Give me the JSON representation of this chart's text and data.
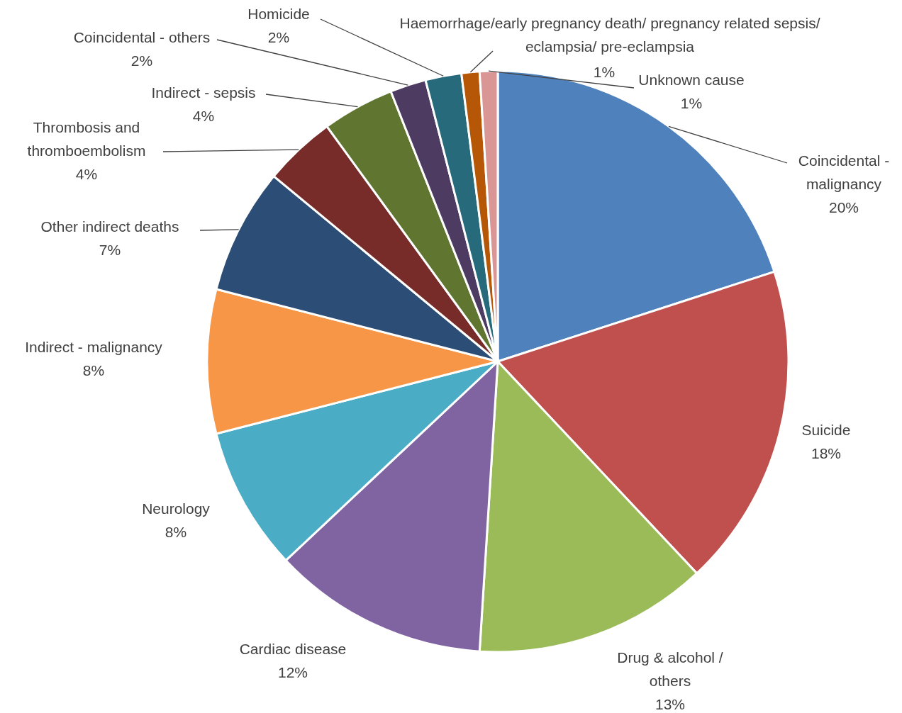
{
  "chart_data": {
    "type": "pie",
    "categories": [
      "Coincidental - malignancy",
      "Suicide",
      "Drug & alcohol / others",
      "Cardiac disease",
      "Neurology",
      "Indirect - malignancy",
      "Other indirect deaths",
      "Thrombosis and thromboembolism",
      "Indirect - sepsis",
      "Coincidental - others",
      "Homicide",
      "Haemorrhage/early pregnancy death/ pregnancy related sepsis/ eclampsia/ pre-eclampsia",
      "Unknown cause"
    ],
    "values": [
      20,
      18,
      13,
      12,
      8,
      8,
      7,
      4,
      4,
      2,
      2,
      1,
      1
    ],
    "value_labels": [
      "20%",
      "18%",
      "13%",
      "12%",
      "8%",
      "8%",
      "7%",
      "4%",
      "4%",
      "2%",
      "2%",
      "1%",
      "1%"
    ],
    "colors": [
      "#4f81bd",
      "#c0504d",
      "#9bbb59",
      "#8064a2",
      "#4bacc6",
      "#f79646",
      "#2c4d75",
      "#772c2a",
      "#5f7530",
      "#4d3b62",
      "#276a7c",
      "#b65708",
      "#d99694"
    ]
  }
}
